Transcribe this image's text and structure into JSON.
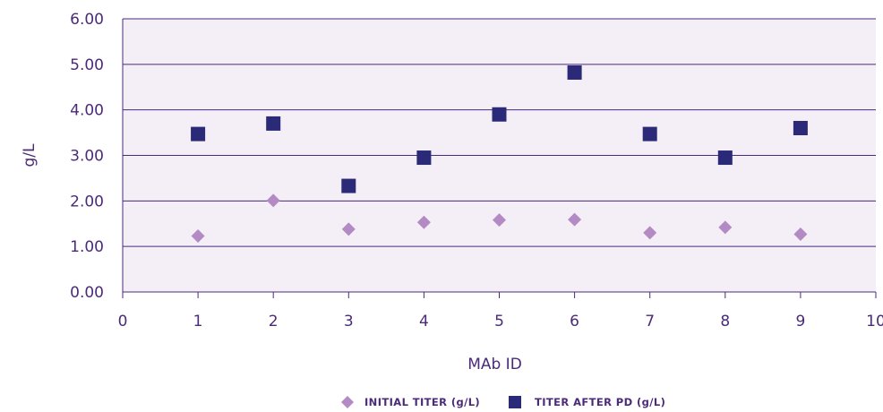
{
  "chart_data": {
    "type": "scatter",
    "xlabel": "MAb ID",
    "ylabel": "g/L",
    "xlim": [
      0,
      10
    ],
    "ylim": [
      0,
      6
    ],
    "x_ticks": [
      "0",
      "1",
      "2",
      "3",
      "4",
      "5",
      "6",
      "7",
      "8",
      "9",
      "10"
    ],
    "y_ticks": [
      "0.00",
      "1.00",
      "2.00",
      "3.00",
      "4.00",
      "5.00",
      "6.00"
    ],
    "grid": "horizontal",
    "legend_position": "bottom",
    "series": [
      {
        "name": "INITIAL TITER (g/L)",
        "marker": "diamond",
        "color": "#b48ac4",
        "x": [
          1,
          2,
          3,
          4,
          5,
          6,
          7,
          8,
          9
        ],
        "y": [
          1.23,
          2.01,
          1.38,
          1.53,
          1.58,
          1.59,
          1.3,
          1.42,
          1.27
        ]
      },
      {
        "name": "TITER AFTER PD (g/L)",
        "marker": "square",
        "color": "#2b2a78",
        "x": [
          1,
          2,
          3,
          4,
          5,
          6,
          7,
          8,
          9
        ],
        "y": [
          3.47,
          3.7,
          2.33,
          2.95,
          3.9,
          4.82,
          3.47,
          2.95,
          3.6
        ]
      }
    ]
  },
  "colors": {
    "plot_background": "#f4eef7",
    "gridline": "#4b2a78",
    "text": "#4b2a78"
  }
}
